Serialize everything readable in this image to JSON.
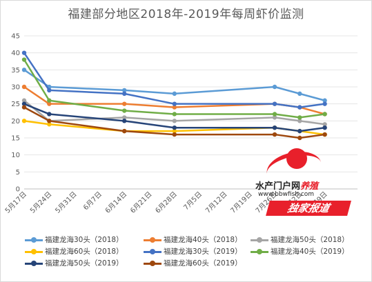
{
  "chart_data": {
    "type": "line",
    "title": "福建部分地区2018年-2019年每周虾价监测",
    "xlabel": "",
    "ylabel": "",
    "ylim": [
      0,
      45
    ],
    "yticks": [
      0,
      5,
      10,
      15,
      20,
      25,
      30,
      35,
      40,
      45
    ],
    "categories": [
      "5月17日",
      "5月24日",
      "5月31日",
      "6月7日",
      "6月14日",
      "6月21日",
      "6月28日",
      "7月5日",
      "7月12日",
      "7月19日",
      "7月26日",
      "8月2日",
      "8月9日"
    ],
    "grid": true,
    "legend_position": "bottom",
    "series": [
      {
        "name": "福建龙海30头（2018）",
        "color": "#5b9bd5",
        "values": [
          35,
          30,
          null,
          null,
          29,
          null,
          28,
          null,
          null,
          null,
          30,
          28,
          26
        ]
      },
      {
        "name": "福建龙海40头（2018）",
        "color": "#ed7d31",
        "values": [
          30,
          25,
          null,
          null,
          25,
          null,
          24,
          null,
          null,
          null,
          25,
          24,
          22
        ]
      },
      {
        "name": "福建龙海50头（2018）",
        "color": "#a5a5a5",
        "values": [
          26,
          20,
          null,
          null,
          21,
          null,
          20,
          null,
          null,
          null,
          21,
          20,
          19
        ]
      },
      {
        "name": "福建龙海60头（2018）",
        "color": "#ffc000",
        "values": [
          20,
          19,
          null,
          null,
          17,
          null,
          17,
          null,
          null,
          null,
          18,
          17,
          16
        ]
      },
      {
        "name": "福建龙海30头（2019）",
        "color": "#4472c4",
        "values": [
          40,
          29,
          null,
          null,
          28,
          null,
          25,
          null,
          null,
          null,
          25,
          24,
          25
        ]
      },
      {
        "name": "福建龙海40头（2019）",
        "color": "#70ad47",
        "values": [
          38,
          26,
          null,
          null,
          23,
          null,
          22,
          null,
          null,
          null,
          22,
          21,
          22
        ]
      },
      {
        "name": "福建龙海50头（2019）",
        "color": "#264478",
        "values": [
          25,
          22,
          null,
          null,
          20,
          null,
          18,
          null,
          null,
          null,
          18,
          17,
          18
        ]
      },
      {
        "name": "福建龙海60头（2019）",
        "color": "#9e480e",
        "values": [
          24,
          20,
          null,
          null,
          17,
          null,
          16,
          null,
          null,
          null,
          16,
          15,
          16
        ]
      }
    ]
  },
  "watermark": {
    "line1_black": "水产门户网",
    "line1_red": "养殖",
    "url": "www.bbwfish.com",
    "badge": "独家报道"
  }
}
